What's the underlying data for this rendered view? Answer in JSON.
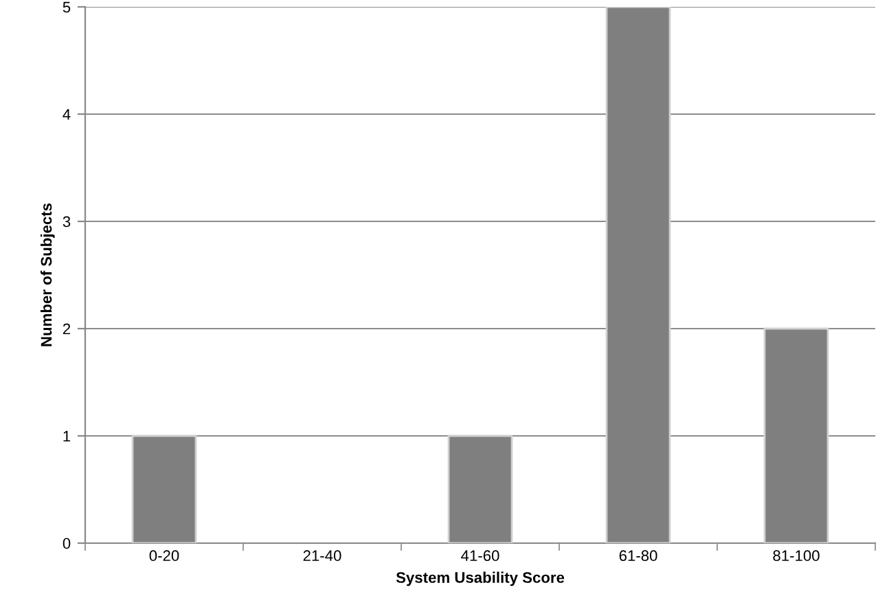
{
  "chart_data": {
    "type": "bar",
    "xlabel": "System Usability Score",
    "ylabel": "Number of Subjects",
    "categories": [
      "0-20",
      "21-40",
      "41-60",
      "61-80",
      "81-100"
    ],
    "values": [
      1,
      0,
      1,
      5,
      2
    ],
    "color": "#7f7f7f",
    "ylim": [
      0,
      5
    ],
    "yticks": [
      0,
      1,
      2,
      3,
      4,
      5
    ],
    "grid": "y"
  }
}
